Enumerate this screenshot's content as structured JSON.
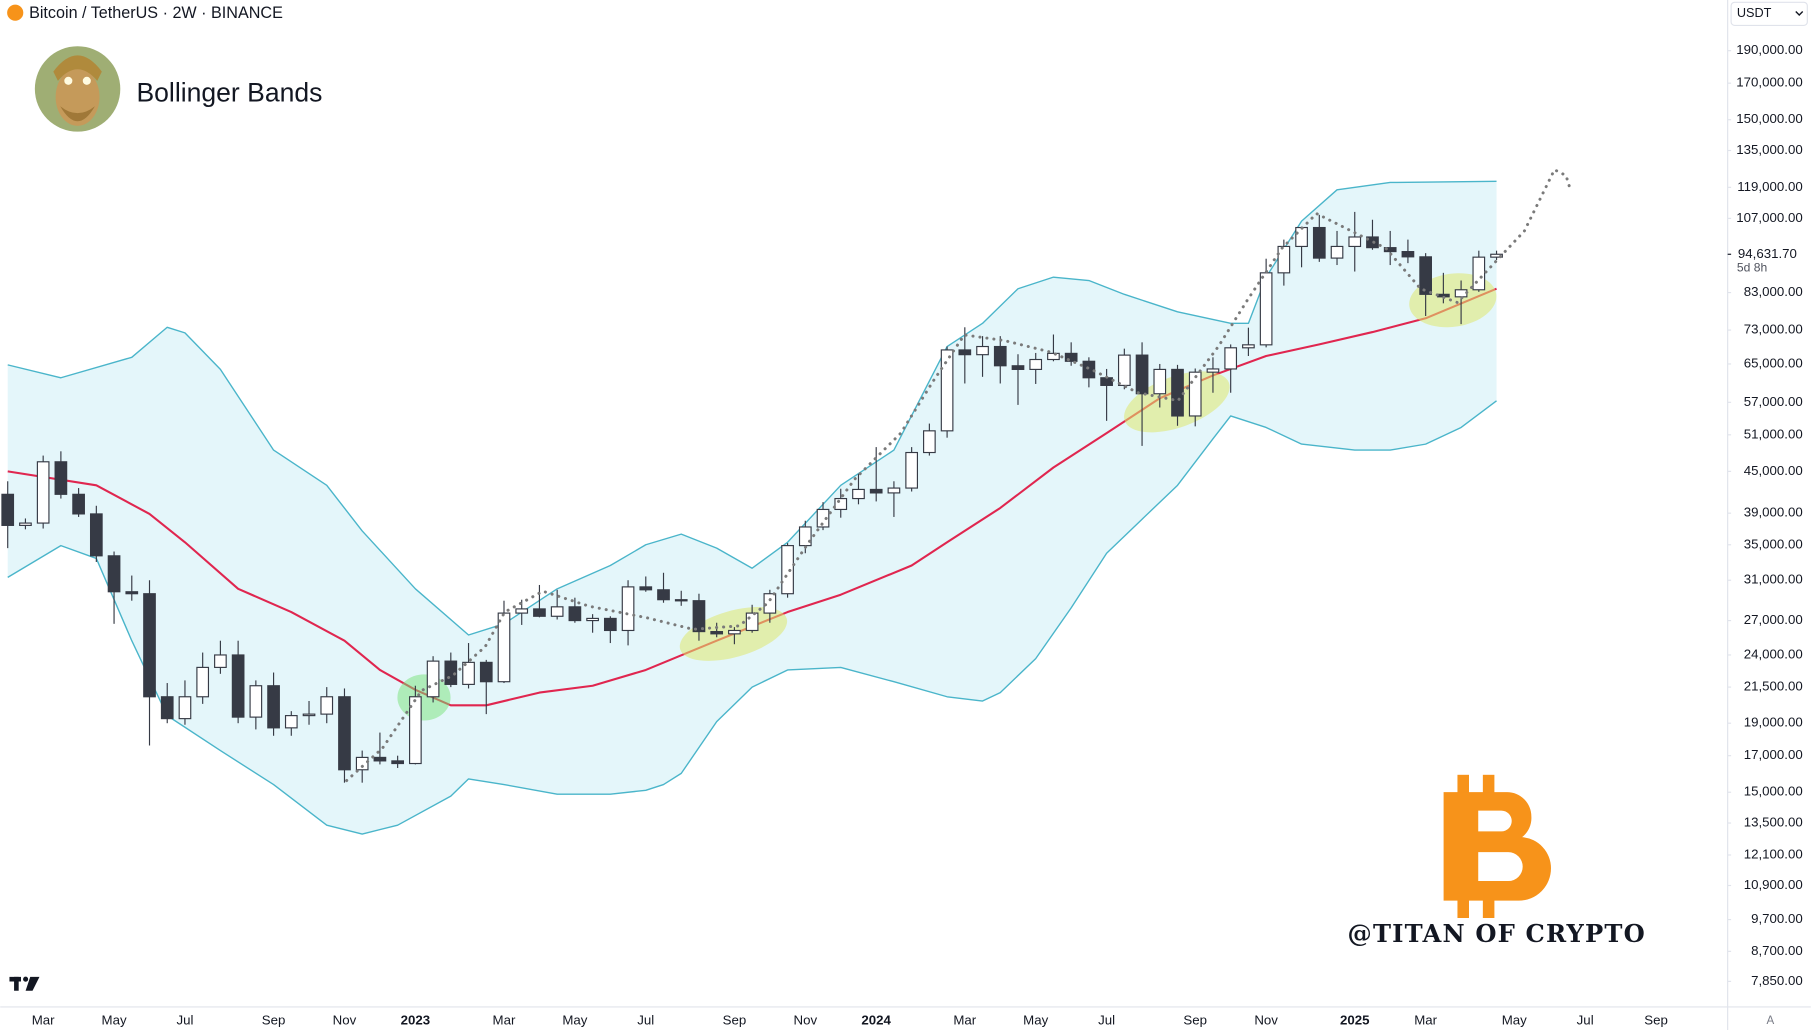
{
  "chart_data": {
    "type": "candlestick",
    "source": "Bitcoin / TetherUS · 2W · BINANCE",
    "title": "Bollinger Bands",
    "categories": [
      null,
      null,
      "Mar",
      null,
      null,
      null,
      "May",
      null,
      null,
      null,
      "Jul",
      null,
      null,
      null,
      null,
      "Sep",
      null,
      null,
      null,
      "Nov",
      null,
      null,
      null,
      "2023",
      null,
      null,
      null,
      null,
      "Mar",
      null,
      null,
      null,
      "May",
      null,
      null,
      null,
      "Jul",
      null,
      null,
      null,
      null,
      "Sep",
      null,
      null,
      null,
      "Nov",
      null,
      null,
      null,
      "2024",
      null,
      null,
      null,
      null,
      "Mar",
      null,
      null,
      null,
      "May",
      null,
      null,
      null,
      "Jul",
      null,
      null,
      null,
      null,
      "Sep",
      null,
      null,
      null,
      "Nov",
      null,
      null,
      null,
      null,
      "2025",
      null,
      null,
      null,
      "Mar",
      null,
      null,
      null,
      null,
      "May",
      null,
      null,
      null,
      "Jul",
      null,
      null,
      null,
      "Sep"
    ],
    "open": [
      41600,
      37400,
      37700,
      46500,
      41600,
      38900,
      33700,
      29800,
      29600,
      20800,
      19300,
      20800,
      23000,
      24000,
      19400,
      21600,
      18700,
      19500,
      19600,
      20800,
      16200,
      16900,
      16700,
      16550,
      20800,
      23500,
      21700,
      23400,
      21900,
      27700,
      28100,
      27400,
      28300,
      27000,
      27200,
      26100,
      30300,
      30000,
      29000,
      28900,
      26000,
      25800,
      26100,
      27700,
      29600,
      34900,
      37200,
      39500,
      41000,
      42300,
      41800,
      42500,
      48000,
      51700,
      68200,
      67100,
      69000,
      64600,
      63800,
      66000,
      67400,
      65600,
      62000,
      60400,
      67000,
      58700,
      63800,
      54400,
      63200,
      63900,
      68700,
      69400,
      88800,
      97200,
      103700,
      93400,
      97200,
      100400,
      96800,
      95500,
      93800,
      82500,
      81800,
      83800,
      93700,
      null,
      null,
      null,
      null,
      null,
      null,
      null,
      null,
      null
    ],
    "high": [
      43500,
      38300,
      47500,
      48200,
      42500,
      40000,
      34200,
      31500,
      31000,
      21800,
      22000,
      24200,
      25200,
      25200,
      22000,
      22600,
      19800,
      20500,
      21500,
      21400,
      17300,
      18400,
      17000,
      21600,
      23900,
      24200,
      25000,
      23600,
      28900,
      29000,
      30500,
      30000,
      29200,
      27600,
      27400,
      31000,
      31400,
      31800,
      29900,
      29600,
      26800,
      26400,
      28500,
      30000,
      35200,
      38000,
      40500,
      42400,
      44600,
      48900,
      43500,
      48900,
      53000,
      69000,
      73700,
      71500,
      71500,
      67200,
      67500,
      71900,
      70000,
      66500,
      63900,
      68500,
      70000,
      65000,
      64800,
      64000,
      66500,
      69500,
      73600,
      93200,
      99500,
      104000,
      108300,
      102500,
      109400,
      106500,
      102500,
      99500,
      95000,
      88800,
      86500,
      95800,
      95800,
      null,
      null,
      null,
      null,
      null,
      null,
      null,
      null,
      null
    ],
    "low": [
      34600,
      36900,
      37000,
      41000,
      38500,
      33000,
      26700,
      28900,
      17600,
      19000,
      18900,
      20300,
      22500,
      19000,
      18600,
      18200,
      18200,
      18900,
      19000,
      15500,
      15500,
      16500,
      16300,
      16500,
      20400,
      21500,
      21400,
      19600,
      21800,
      26600,
      27300,
      27100,
      26800,
      25900,
      25000,
      24800,
      29800,
      28700,
      28400,
      25200,
      25500,
      24900,
      25900,
      26800,
      29200,
      34000,
      36800,
      38400,
      40200,
      40600,
      38500,
      42000,
      47500,
      50500,
      60800,
      62200,
      60800,
      56500,
      60700,
      65600,
      64600,
      60000,
      53500,
      59600,
      49100,
      56000,
      52600,
      52500,
      58900,
      58900,
      66800,
      68800,
      85000,
      90500,
      92200,
      91200,
      89200,
      96100,
      91200,
      91800,
      76600,
      80000,
      74500,
      83200,
      92800,
      null,
      null,
      null,
      null,
      null,
      null,
      null,
      null,
      null
    ],
    "close": [
      37400,
      37700,
      46500,
      41600,
      38900,
      33700,
      29800,
      29600,
      20800,
      19300,
      20800,
      23000,
      24000,
      19400,
      21600,
      18700,
      19500,
      19600,
      20800,
      16200,
      16900,
      16700,
      16550,
      20800,
      23500,
      21700,
      23400,
      21900,
      27700,
      28100,
      27400,
      28300,
      27000,
      27200,
      26100,
      30300,
      30000,
      29000,
      28900,
      26000,
      25800,
      26100,
      27700,
      29600,
      34900,
      37200,
      39500,
      41000,
      42300,
      41800,
      42500,
      48000,
      51700,
      68200,
      67100,
      69000,
      64600,
      63800,
      66000,
      67400,
      65600,
      62000,
      60400,
      67000,
      58700,
      63800,
      54400,
      63200,
      63900,
      68700,
      69400,
      88800,
      97200,
      103700,
      93400,
      97200,
      100400,
      96800,
      95500,
      93800,
      82500,
      81800,
      83800,
      93700,
      94631.7,
      null,
      null,
      null,
      null,
      null,
      null,
      null,
      null,
      null
    ],
    "up_color": "#ffffff",
    "down_color": "#363a45",
    "bands": {
      "color": "#4ab5ca",
      "fill": "#e4f6fa",
      "basis_color": "#e0264f",
      "upper": {
        "x": [
          0,
          3,
          7,
          9,
          10,
          12,
          15,
          18,
          20,
          23,
          26,
          28,
          31,
          34,
          36,
          38,
          40,
          42,
          44,
          47,
          50,
          53,
          55,
          57,
          59,
          61,
          63,
          66,
          69,
          70,
          71,
          73,
          75,
          78,
          84
        ],
        "values": [
          64800,
          62000,
          66500,
          73700,
          72300,
          63800,
          48400,
          42900,
          36700,
          30100,
          25700,
          26700,
          30100,
          32600,
          35000,
          36300,
          34600,
          32300,
          35300,
          42900,
          48400,
          69000,
          74700,
          84100,
          87500,
          86500,
          82500,
          77700,
          74700,
          74700,
          87500,
          106000,
          118000,
          121000,
          121500
        ]
      },
      "basis": {
        "x": [
          0,
          5,
          8,
          10,
          13,
          16,
          19,
          21,
          23,
          25,
          27,
          30,
          33,
          36,
          40,
          44,
          47,
          51,
          53,
          56,
          59,
          62,
          65,
          68,
          71,
          74,
          77,
          80,
          84
        ],
        "values": [
          45000,
          42900,
          38900,
          35300,
          30100,
          27800,
          25200,
          22800,
          21300,
          20200,
          20200,
          21100,
          21600,
          22800,
          25200,
          27800,
          29500,
          32600,
          35300,
          39700,
          45600,
          51300,
          57800,
          62500,
          66800,
          69500,
          72500,
          76000,
          84100
        ]
      },
      "lower": {
        "x": [
          0,
          3,
          5,
          7,
          9,
          12,
          15,
          18,
          20,
          22,
          25,
          26,
          28,
          31,
          34,
          36,
          37,
          38,
          40,
          42,
          44,
          47,
          50,
          53,
          55,
          56,
          58,
          60,
          62,
          64,
          66,
          68,
          69,
          71,
          73,
          76,
          78,
          80,
          82,
          84
        ],
        "values": [
          31300,
          34900,
          33400,
          25200,
          19500,
          17300,
          15400,
          13400,
          13000,
          13400,
          14800,
          15700,
          15400,
          14900,
          14900,
          15100,
          15400,
          16000,
          19100,
          21500,
          22800,
          23000,
          21900,
          20800,
          20500,
          21100,
          23700,
          28200,
          34000,
          38200,
          42900,
          50300,
          54400,
          52300,
          49400,
          48400,
          48400,
          49400,
          52300,
          57300
        ]
      }
    },
    "log_scale": true,
    "grid": false,
    "ylim": [
      7250,
      226000
    ],
    "yticks": [
      {
        "value": 190000,
        "label": "190,000.00"
      },
      {
        "value": 170000,
        "label": "170,000.00"
      },
      {
        "value": 150000,
        "label": "150,000.00"
      },
      {
        "value": 135000,
        "label": "135,000.00"
      },
      {
        "value": 119000,
        "label": "119,000.00"
      },
      {
        "value": 107000,
        "label": "107,000.00"
      },
      {
        "value": 83000,
        "label": "83,000.00"
      },
      {
        "value": 73000,
        "label": "73,000.00"
      },
      {
        "value": 65000,
        "label": "65,000.00"
      },
      {
        "value": 57000,
        "label": "57,000.00"
      },
      {
        "value": 51000,
        "label": "51,000.00"
      },
      {
        "value": 45000,
        "label": "45,000.00"
      },
      {
        "value": 39000,
        "label": "39,000.00"
      },
      {
        "value": 35000,
        "label": "35,000.00"
      },
      {
        "value": 31000,
        "label": "31,000.00"
      },
      {
        "value": 27000,
        "label": "27,000.00"
      },
      {
        "value": 24000,
        "label": "24,000.00"
      },
      {
        "value": 21500,
        "label": "21,500.00"
      },
      {
        "value": 19000,
        "label": "19,000.00"
      },
      {
        "value": 17000,
        "label": "17,000.00"
      },
      {
        "value": 15000,
        "label": "15,000.00"
      },
      {
        "value": 13500,
        "label": "13,500.00"
      },
      {
        "value": 12100,
        "label": "12,100.00"
      },
      {
        "value": 10900,
        "label": "10,900.00"
      },
      {
        "value": 9700,
        "label": "9,700.00"
      },
      {
        "value": 8700,
        "label": "8,700.00"
      },
      {
        "value": 7850,
        "label": "7,850.00"
      }
    ],
    "last_price": {
      "value": 94631.7,
      "label": "94,631.70"
    },
    "countdown": "5d 8h",
    "watermark": "@TITAN OF CRYPTO"
  },
  "ui": {
    "currency": "USDT",
    "autoscale_button": "A"
  }
}
